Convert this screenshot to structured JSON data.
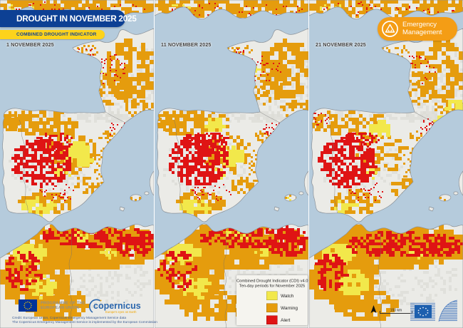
{
  "header": {
    "title": "DROUGHT IN NOVEMBER 2025",
    "subtitle": "COMBINED DROUGHT INDICATOR"
  },
  "branding": {
    "em_line1": "Emergency",
    "em_line2": "Management"
  },
  "panels": [
    {
      "date_label": "1 NOVEMBER 2025"
    },
    {
      "date_label": "11 NOVEMBER 2025"
    },
    {
      "date_label": "21 NOVEMBER 2025"
    }
  ],
  "legend": {
    "title_line1": "Combined Drought Indicator (CDI) v4.0",
    "title_line2": "Ten-day periods for November 2025",
    "items": [
      {
        "label": "Watch",
        "key": "watch",
        "color": "#f2e84b"
      },
      {
        "label": "Warning",
        "key": "warning",
        "color": "#e59c0d"
      },
      {
        "label": "Alert",
        "key": "alert",
        "color": "#df1414"
      }
    ]
  },
  "footer": {
    "programme_line1": "PROGRAMME OF THE",
    "programme_line2": "EUROPEAN UNION",
    "copernicus_wordmark": "copernicus",
    "copernicus_tagline": "Europe's eyes on Earth",
    "credit_line1": "Credit: European Union, Copernicus Emergency Management Service data",
    "credit_line2": "The Copernicus Emergency Management Service is implemented by the European Commission",
    "scale_label": "150 km"
  },
  "colors": {
    "sea": "#b5cbdc",
    "land": "#ebebe7",
    "coast": "#8b9299",
    "border": "#6f6f6f",
    "title_navy": "#0d4094",
    "subtitle_yellow": "#fdd31b",
    "em_orange": "#f49d15",
    "watch": "#f2e84b",
    "warning": "#e59c0d",
    "alert": "#df1414"
  },
  "maps": {
    "panels": [
      {
        "seed": 11,
        "clusters": [
          [
            108,
            8,
            115,
            16,
            "warning",
            300,
            5
          ],
          [
            210,
            22,
            14,
            16,
            "warning",
            50,
            5
          ],
          [
            182,
            95,
            38,
            42,
            "warning",
            170,
            6
          ],
          [
            152,
            122,
            26,
            22,
            "warning",
            55,
            4
          ],
          [
            196,
            150,
            22,
            12,
            "warning",
            40,
            4
          ],
          [
            118,
            70,
            20,
            9,
            "warning",
            24,
            3
          ],
          [
            55,
            170,
            50,
            17,
            "warning",
            150,
            5
          ],
          [
            14,
            168,
            16,
            12,
            "warning",
            55,
            4
          ],
          [
            98,
            212,
            36,
            28,
            "warning",
            110,
            5
          ],
          [
            60,
            282,
            36,
            16,
            "warning",
            100,
            5
          ],
          [
            143,
            232,
            13,
            26,
            "warning",
            40,
            3
          ],
          [
            120,
            258,
            18,
            12,
            "warning",
            30,
            4
          ],
          [
            128,
            300,
            26,
            8,
            "warning",
            22,
            3
          ],
          [
            150,
            190,
            12,
            8,
            "warning",
            18,
            3
          ],
          [
            190,
            278,
            12,
            5,
            "warning",
            8,
            3
          ],
          [
            110,
            342,
            115,
            30,
            "warning",
            650,
            7
          ],
          [
            45,
            388,
            48,
            38,
            "warning",
            300,
            7
          ],
          [
            75,
            425,
            45,
            22,
            "warning",
            130,
            6
          ],
          [
            30,
            10,
            20,
            6,
            "watch",
            12,
            3
          ],
          [
            139,
            100,
            8,
            8,
            "watch",
            10,
            3
          ],
          [
            106,
            214,
            20,
            16,
            "watch",
            80,
            6
          ],
          [
            86,
            240,
            12,
            9,
            "watch",
            25,
            4
          ],
          [
            52,
            287,
            26,
            11,
            "watch",
            45,
            5
          ],
          [
            38,
            352,
            24,
            13,
            "watch",
            90,
            6
          ],
          [
            55,
            400,
            20,
            15,
            "watch",
            40,
            5
          ],
          [
            150,
            352,
            11,
            7,
            "watch",
            15,
            4
          ],
          [
            110,
            330,
            20,
            8,
            "watch",
            20,
            4
          ],
          [
            60,
            12,
            40,
            10,
            "alert",
            22,
            2
          ],
          [
            160,
            14,
            50,
            10,
            "alert",
            18,
            2
          ],
          [
            150,
            95,
            28,
            22,
            "alert",
            40,
            2
          ],
          [
            120,
            72,
            16,
            6,
            "alert",
            10,
            2
          ],
          [
            58,
            225,
            42,
            34,
            "alert",
            300,
            4
          ],
          [
            75,
            197,
            28,
            13,
            "alert",
            70,
            3
          ],
          [
            80,
            268,
            28,
            14,
            "alert",
            28,
            2
          ],
          [
            166,
            182,
            16,
            12,
            "alert",
            22,
            2
          ],
          [
            135,
            330,
            80,
            16,
            "alert",
            200,
            4
          ],
          [
            185,
            342,
            28,
            16,
            "alert",
            90,
            4
          ],
          [
            30,
            378,
            26,
            28,
            "alert",
            80,
            4
          ]
        ]
      },
      {
        "seed": 47,
        "clusters": [
          [
            108,
            8,
            115,
            16,
            "warning",
            300,
            5
          ],
          [
            210,
            22,
            14,
            16,
            "warning",
            50,
            5
          ],
          [
            182,
            95,
            38,
            42,
            "warning",
            165,
            6
          ],
          [
            152,
            122,
            26,
            22,
            "warning",
            55,
            4
          ],
          [
            196,
            150,
            22,
            12,
            "warning",
            40,
            4
          ],
          [
            118,
            70,
            20,
            9,
            "warning",
            22,
            3
          ],
          [
            55,
            170,
            50,
            17,
            "warning",
            140,
            5
          ],
          [
            14,
            168,
            16,
            12,
            "warning",
            50,
            4
          ],
          [
            98,
            212,
            36,
            28,
            "warning",
            100,
            5
          ],
          [
            60,
            282,
            36,
            16,
            "warning",
            95,
            5
          ],
          [
            143,
            232,
            13,
            26,
            "warning",
            42,
            3
          ],
          [
            120,
            258,
            18,
            12,
            "warning",
            32,
            4
          ],
          [
            128,
            300,
            26,
            8,
            "warning",
            22,
            3
          ],
          [
            150,
            190,
            12,
            8,
            "warning",
            18,
            3
          ],
          [
            190,
            278,
            12,
            5,
            "warning",
            8,
            3
          ],
          [
            110,
            342,
            115,
            30,
            "warning",
            650,
            7
          ],
          [
            45,
            388,
            48,
            38,
            "warning",
            300,
            7
          ],
          [
            75,
            425,
            45,
            22,
            "warning",
            130,
            6
          ],
          [
            30,
            10,
            20,
            6,
            "watch",
            12,
            3
          ],
          [
            139,
            100,
            8,
            8,
            "watch",
            10,
            3
          ],
          [
            82,
            172,
            14,
            9,
            "watch",
            40,
            5
          ],
          [
            104,
            216,
            18,
            14,
            "watch",
            60,
            6
          ],
          [
            86,
            240,
            12,
            9,
            "watch",
            20,
            4
          ],
          [
            52,
            287,
            26,
            11,
            "watch",
            30,
            5
          ],
          [
            38,
            352,
            24,
            13,
            "watch",
            90,
            6
          ],
          [
            55,
            400,
            20,
            15,
            "watch",
            40,
            5
          ],
          [
            150,
            352,
            11,
            7,
            "watch",
            15,
            4
          ],
          [
            110,
            330,
            20,
            8,
            "watch",
            18,
            4
          ],
          [
            190,
            278,
            9,
            4,
            "watch",
            6,
            3
          ],
          [
            60,
            12,
            40,
            10,
            "alert",
            22,
            2
          ],
          [
            160,
            14,
            50,
            10,
            "alert",
            18,
            2
          ],
          [
            150,
            95,
            28,
            22,
            "alert",
            30,
            2
          ],
          [
            120,
            72,
            16,
            6,
            "alert",
            10,
            2
          ],
          [
            60,
            222,
            42,
            36,
            "alert",
            340,
            4
          ],
          [
            75,
            197,
            28,
            13,
            "alert",
            75,
            3
          ],
          [
            80,
            268,
            28,
            14,
            "alert",
            30,
            2
          ],
          [
            166,
            182,
            16,
            12,
            "alert",
            30,
            2
          ],
          [
            135,
            330,
            80,
            16,
            "alert",
            200,
            4
          ],
          [
            185,
            342,
            28,
            16,
            "alert",
            90,
            4
          ],
          [
            30,
            378,
            26,
            28,
            "alert",
            85,
            4
          ]
        ]
      },
      {
        "seed": 83,
        "clusters": [
          [
            108,
            8,
            115,
            16,
            "warning",
            260,
            5
          ],
          [
            210,
            22,
            14,
            16,
            "warning",
            45,
            5
          ],
          [
            182,
            95,
            38,
            42,
            "warning",
            150,
            6
          ],
          [
            152,
            122,
            26,
            22,
            "warning",
            45,
            4
          ],
          [
            196,
            150,
            22,
            12,
            "warning",
            35,
            4
          ],
          [
            118,
            70,
            20,
            9,
            "warning",
            18,
            3
          ],
          [
            55,
            170,
            50,
            17,
            "warning",
            80,
            5
          ],
          [
            14,
            168,
            16,
            12,
            "warning",
            30,
            4
          ],
          [
            98,
            212,
            36,
            28,
            "warning",
            70,
            5
          ],
          [
            60,
            282,
            36,
            16,
            "warning",
            70,
            5
          ],
          [
            135,
            262,
            20,
            16,
            "warning",
            60,
            5
          ],
          [
            143,
            232,
            13,
            26,
            "warning",
            45,
            3
          ],
          [
            128,
            300,
            26,
            8,
            "warning",
            22,
            3
          ],
          [
            150,
            190,
            12,
            8,
            "warning",
            15,
            3
          ],
          [
            190,
            278,
            12,
            5,
            "warning",
            8,
            3
          ],
          [
            110,
            342,
            115,
            30,
            "warning",
            650,
            7
          ],
          [
            45,
            388,
            48,
            38,
            "warning",
            290,
            7
          ],
          [
            75,
            425,
            45,
            22,
            "warning",
            130,
            6
          ],
          [
            30,
            10,
            20,
            6,
            "watch",
            10,
            3
          ],
          [
            205,
            148,
            15,
            8,
            "watch",
            25,
            5
          ],
          [
            95,
            178,
            16,
            10,
            "watch",
            50,
            6
          ],
          [
            185,
            172,
            14,
            10,
            "watch",
            45,
            6
          ],
          [
            86,
            240,
            10,
            8,
            "watch",
            12,
            4
          ],
          [
            52,
            287,
            22,
            10,
            "watch",
            14,
            5
          ],
          [
            38,
            352,
            24,
            13,
            "watch",
            80,
            6
          ],
          [
            60,
            395,
            22,
            16,
            "watch",
            60,
            6
          ],
          [
            150,
            352,
            11,
            7,
            "watch",
            15,
            4
          ],
          [
            60,
            12,
            40,
            10,
            "alert",
            20,
            2
          ],
          [
            160,
            14,
            50,
            10,
            "alert",
            16,
            2
          ],
          [
            150,
            95,
            28,
            22,
            "alert",
            30,
            2
          ],
          [
            52,
            225,
            40,
            36,
            "alert",
            320,
            4
          ],
          [
            70,
            196,
            26,
            12,
            "alert",
            60,
            3
          ],
          [
            80,
            268,
            28,
            14,
            "alert",
            30,
            2
          ],
          [
            170,
            180,
            18,
            14,
            "alert",
            40,
            2
          ],
          [
            14,
            165,
            14,
            10,
            "alert",
            20,
            2
          ],
          [
            120,
            340,
            72,
            18,
            "alert",
            220,
            4
          ],
          [
            185,
            342,
            28,
            16,
            "alert",
            80,
            4
          ],
          [
            28,
            380,
            24,
            26,
            "alert",
            90,
            4
          ]
        ]
      }
    ]
  }
}
